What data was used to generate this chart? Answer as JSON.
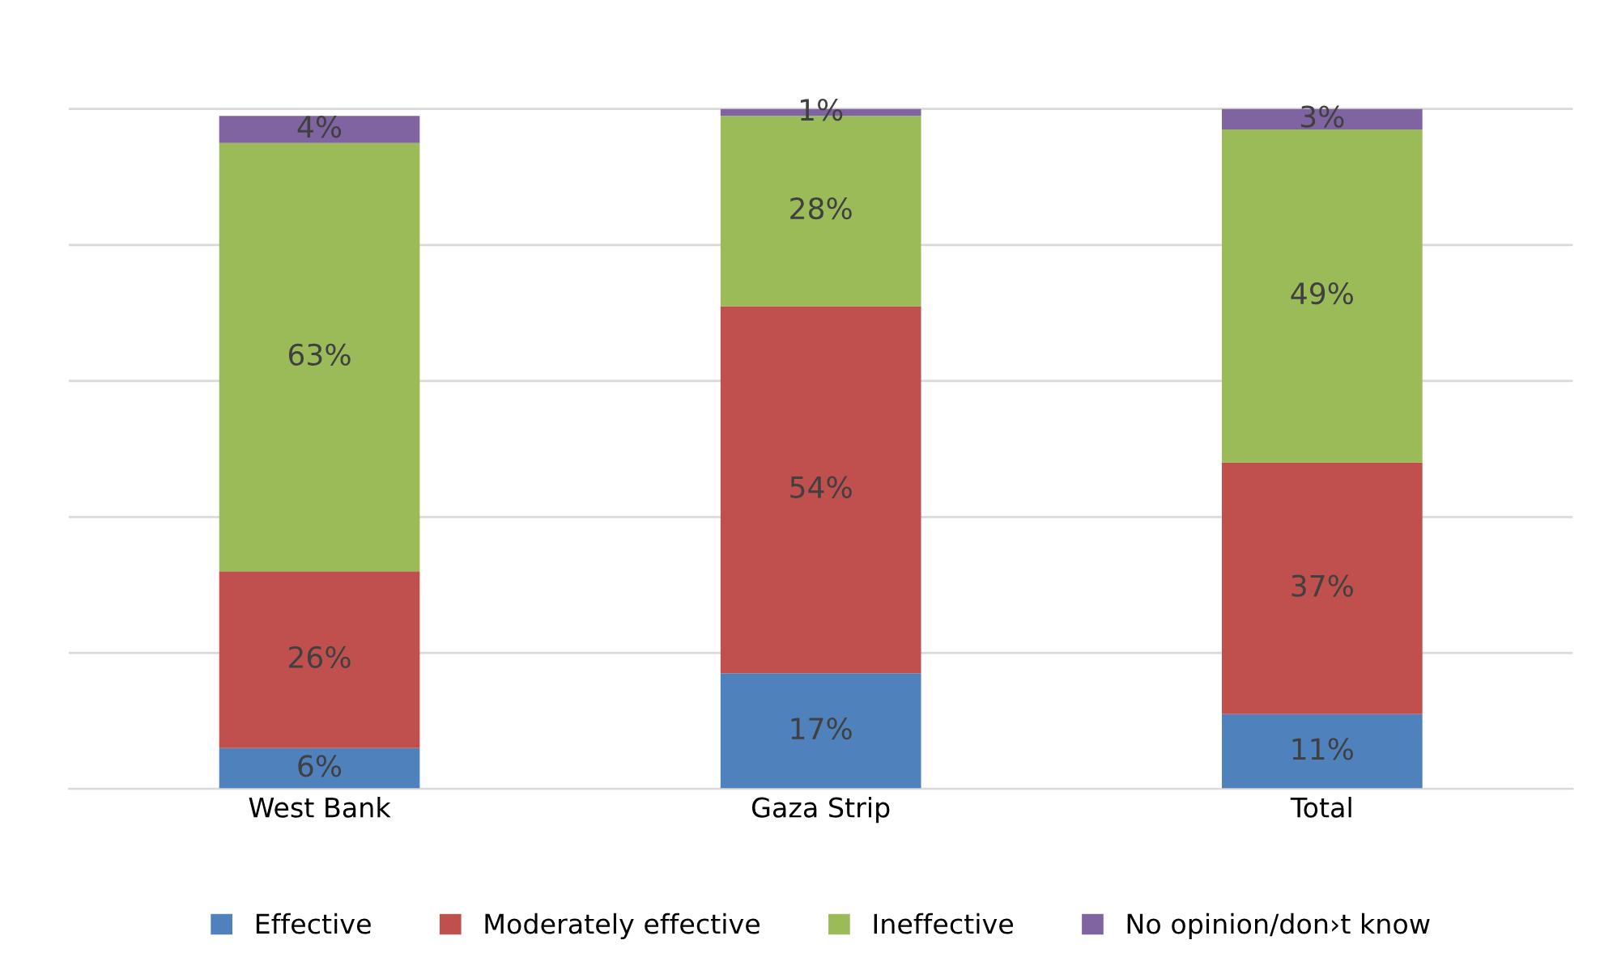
{
  "chart_data": {
    "type": "bar",
    "stacked": true,
    "categories": [
      "West Bank",
      "Gaza Strip",
      "Total"
    ],
    "series": [
      {
        "name": "Effective",
        "color": "#4f81bd",
        "values": [
          6,
          17,
          11
        ],
        "value_labels": [
          "6%",
          "17%",
          "11%"
        ]
      },
      {
        "name": "Moderately effective",
        "color": "#c0504d",
        "values": [
          26,
          54,
          37
        ],
        "value_labels": [
          "26%",
          "54%",
          "37%"
        ]
      },
      {
        "name": "Ineffective",
        "color": "#9bbb59",
        "values": [
          63,
          28,
          49
        ],
        "value_labels": [
          "63%",
          "28%",
          "49%"
        ]
      },
      {
        "name": "No opinion/don›t know",
        "color": "#8064a2",
        "values": [
          4,
          1,
          3
        ],
        "value_labels": [
          "4%",
          "1%",
          "3%"
        ]
      }
    ],
    "tick_labels": "x",
    "grid": "y",
    "legend": "bottom"
  }
}
